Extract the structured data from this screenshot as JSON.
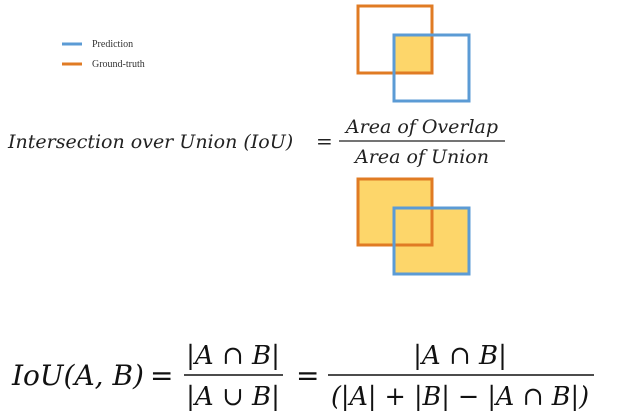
{
  "legend": {
    "items": [
      {
        "label": "Prediction",
        "color": "#5b9bd5"
      },
      {
        "label": "Ground-truth",
        "color": "#e07b24"
      }
    ]
  },
  "definition": {
    "lhs": "Intersection over Union (IoU)",
    "equals": "=",
    "numerator": "Area of Overlap",
    "denominator": "Area of Union"
  },
  "formula": {
    "lhs": "IoU(A, B)",
    "equals1": "=",
    "frac1_num": "|A ∩ B|",
    "frac1_den": "|A ∪ B|",
    "equals2": "=",
    "frac2_num": "|A ∩ B|",
    "frac2_den": "(|A| + |B| − |A ∩ B|)"
  },
  "colors": {
    "prediction": "#5b9bd5",
    "ground_truth": "#e07b24",
    "fill": "#fdd66a"
  }
}
